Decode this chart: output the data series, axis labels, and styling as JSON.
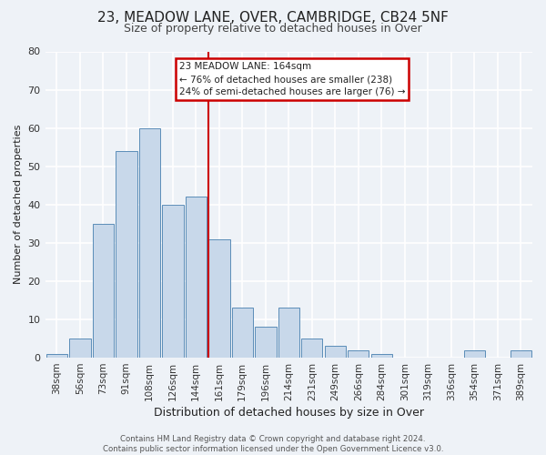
{
  "title": "23, MEADOW LANE, OVER, CAMBRIDGE, CB24 5NF",
  "subtitle": "Size of property relative to detached houses in Over",
  "xlabel": "Distribution of detached houses by size in Over",
  "ylabel": "Number of detached properties",
  "bar_labels": [
    "38sqm",
    "56sqm",
    "73sqm",
    "91sqm",
    "108sqm",
    "126sqm",
    "144sqm",
    "161sqm",
    "179sqm",
    "196sqm",
    "214sqm",
    "231sqm",
    "249sqm",
    "266sqm",
    "284sqm",
    "301sqm",
    "319sqm",
    "336sqm",
    "354sqm",
    "371sqm",
    "389sqm"
  ],
  "bar_heights": [
    1,
    5,
    35,
    54,
    60,
    40,
    42,
    31,
    13,
    8,
    13,
    5,
    3,
    2,
    1,
    0,
    0,
    0,
    2,
    0,
    2
  ],
  "bar_color": "#c8d8ea",
  "bar_edge_color": "#5b8db8",
  "vline_color": "#cc0000",
  "ylim": [
    0,
    80
  ],
  "yticks": [
    0,
    10,
    20,
    30,
    40,
    50,
    60,
    70,
    80
  ],
  "annotation_title": "23 MEADOW LANE: 164sqm",
  "annotation_line1": "← 76% of detached houses are smaller (238)",
  "annotation_line2": "24% of semi-detached houses are larger (76) →",
  "annotation_box_color": "#cc0000",
  "footer_line1": "Contains HM Land Registry data © Crown copyright and database right 2024.",
  "footer_line2": "Contains public sector information licensed under the Open Government Licence v3.0.",
  "bg_color": "#eef2f7",
  "grid_color": "#ffffff",
  "title_fontsize": 11,
  "subtitle_fontsize": 9,
  "xlabel_fontsize": 9,
  "ylabel_fontsize": 8,
  "tick_fontsize": 7.5,
  "footer_fontsize": 6.2
}
